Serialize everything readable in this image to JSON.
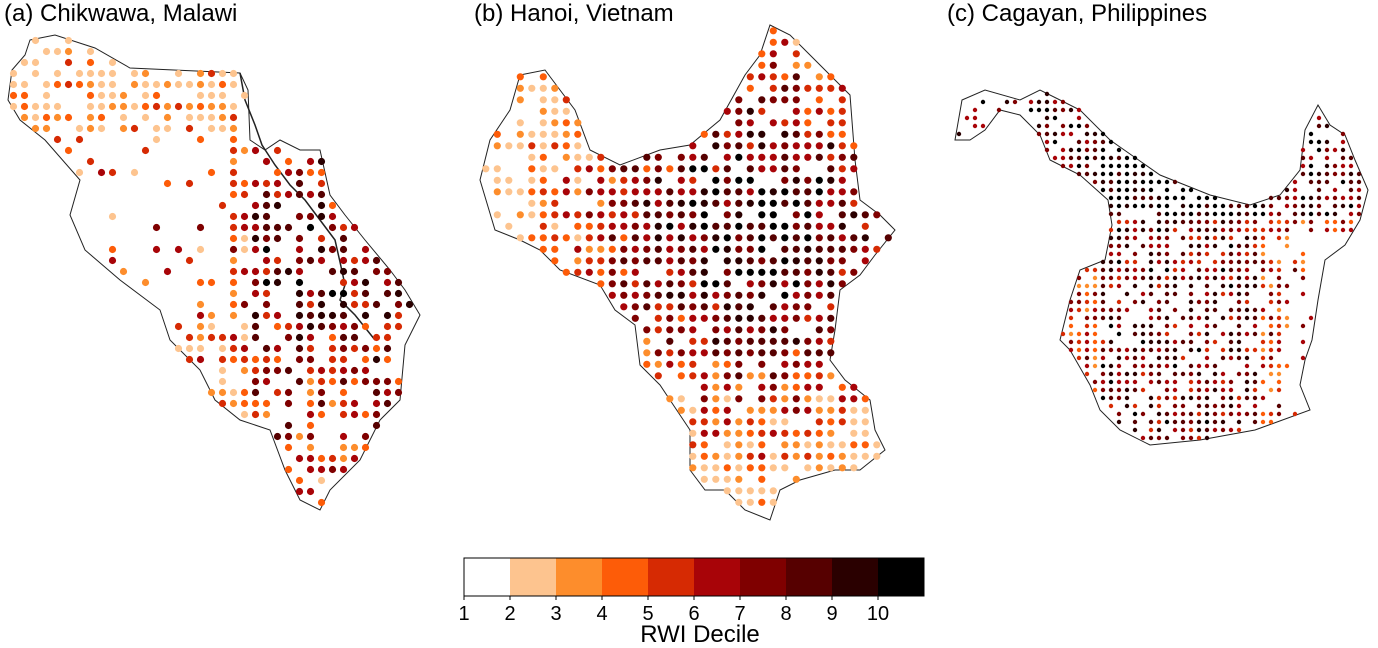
{
  "panels": [
    {
      "label": "(a) Chikwawa, Malawi"
    },
    {
      "label": "(b) Hanoi, Vietnam"
    },
    {
      "label": "(c) Cagayan, Philippines"
    }
  ],
  "legend": {
    "title": "RWI Decile",
    "ticks": [
      "1",
      "2",
      "3",
      "4",
      "5",
      "6",
      "7",
      "8",
      "9",
      "10"
    ],
    "colors": [
      "#ffffff",
      "#fdc48f",
      "#fd8d2c",
      "#fd5c08",
      "#d62a03",
      "#a80408",
      "#7f0000",
      "#560000",
      "#2a0000",
      "#000000"
    ]
  }
}
